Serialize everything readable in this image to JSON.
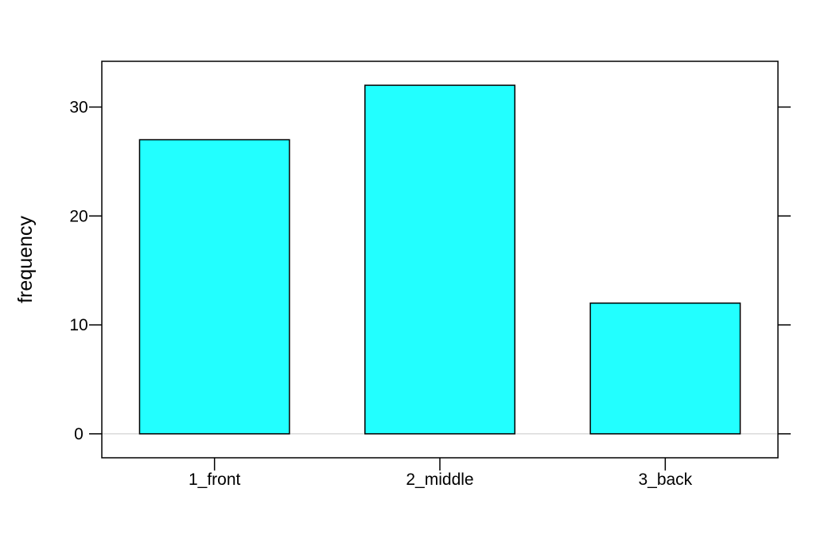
{
  "chart_data": {
    "type": "bar",
    "title": "",
    "xlabel": "",
    "ylabel": "frequency",
    "categories": [
      "1_front",
      "2_middle",
      "3_back"
    ],
    "values": [
      27,
      32,
      12
    ],
    "ylim": [
      -2.2,
      34.2
    ],
    "yticks": [
      0,
      10,
      20,
      30
    ],
    "ytick_labels": [
      "0",
      "10",
      "20",
      "30"
    ],
    "grid": false,
    "legend": "none",
    "colors": {
      "bar_fill": "#22FFFF",
      "bar_stroke": "#000000",
      "baseline": "#D9D9D9",
      "frame": "#000000"
    }
  }
}
